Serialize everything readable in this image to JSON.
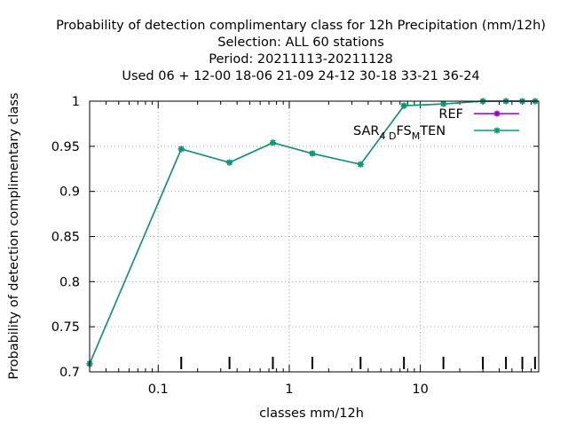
{
  "chart_data": {
    "type": "line",
    "title_lines": [
      "Probability of detection complimentary class  for 12h Precipitation (mm/12h)",
      "Selection: ALL     60 stations",
      "Period: 20211113-20211128",
      "Used  06 + 12-00 18-06 21-09 24-12 30-18 33-21 36-24"
    ],
    "xlabel": "classes mm/12h",
    "ylabel": "Probability of detection complimentary class",
    "x_scale": "log",
    "xlim": [
      0.03,
      80
    ],
    "ylim": [
      0.7,
      1.0
    ],
    "x_tick_labels": [
      "0.1",
      "1",
      "10"
    ],
    "y_tick_labels": [
      "0.7",
      "0.75",
      "0.8",
      "0.85",
      "0.9",
      "0.95",
      "1"
    ],
    "grid": true,
    "legend_position": "top-right",
    "series": [
      {
        "name": "REF",
        "color": "#9400d3",
        "x": [
          0.03,
          0.15,
          0.35,
          0.75,
          1.5,
          3.5,
          7.5,
          15,
          30,
          45,
          60,
          75
        ],
        "y": [
          0.709,
          0.947,
          0.932,
          0.954,
          0.942,
          0.93,
          0.995,
          0.997,
          1.0,
          1.0,
          1.0,
          1.0
        ]
      },
      {
        "name": "SAR_4D_FS_M TEN",
        "legend_parts": [
          "SAR",
          "4 D",
          "FS",
          "M",
          "TEN"
        ],
        "color": "#009e73",
        "x": [
          0.03,
          0.15,
          0.35,
          0.75,
          1.5,
          3.5,
          7.5,
          15,
          30,
          45,
          60,
          75
        ],
        "y": [
          0.709,
          0.947,
          0.932,
          0.954,
          0.942,
          0.93,
          0.995,
          0.997,
          1.0,
          1.0,
          1.0,
          1.0
        ]
      }
    ],
    "bottom_markers_x": [
      0.15,
      0.35,
      0.75,
      1.5,
      3.5,
      7.5,
      15,
      30,
      45,
      60,
      75
    ]
  }
}
